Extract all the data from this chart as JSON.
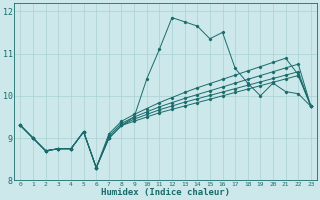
{
  "xlabel": "Humidex (Indice chaleur)",
  "xlim": [
    -0.5,
    23.5
  ],
  "ylim": [
    8,
    12.2
  ],
  "yticks": [
    8,
    9,
    10,
    11,
    12
  ],
  "xticks": [
    0,
    1,
    2,
    3,
    4,
    5,
    6,
    7,
    8,
    9,
    10,
    11,
    12,
    13,
    14,
    15,
    16,
    17,
    18,
    19,
    20,
    21,
    22,
    23
  ],
  "bg_color": "#cce8ea",
  "grid_color": "#aad0d4",
  "line_color": "#1a6b6b",
  "lines": [
    {
      "x": [
        0,
        1,
        2,
        3,
        4,
        5,
        6,
        7,
        8,
        9,
        10,
        11,
        12,
        13,
        14,
        15,
        16,
        17,
        18,
        19,
        20,
        21,
        22,
        23
      ],
      "y": [
        9.3,
        9.0,
        8.7,
        8.75,
        8.75,
        9.15,
        8.3,
        9.0,
        9.3,
        9.5,
        10.4,
        11.1,
        11.85,
        11.75,
        11.65,
        11.35,
        11.5,
        10.65,
        10.3,
        10.0,
        10.3,
        10.1,
        10.05,
        9.75
      ]
    },
    {
      "x": [
        0,
        1,
        2,
        3,
        4,
        5,
        6,
        7,
        8,
        9,
        10,
        11,
        12,
        13,
        14,
        15,
        16,
        17,
        18,
        19,
        20,
        21,
        22,
        23
      ],
      "y": [
        9.3,
        9.0,
        8.7,
        8.75,
        8.75,
        9.15,
        8.3,
        9.0,
        9.3,
        9.4,
        9.5,
        9.6,
        9.68,
        9.76,
        9.84,
        9.92,
        10.0,
        10.08,
        10.16,
        10.24,
        10.32,
        10.4,
        10.48,
        9.75
      ]
    },
    {
      "x": [
        0,
        1,
        2,
        3,
        4,
        5,
        6,
        7,
        8,
        9,
        10,
        11,
        12,
        13,
        14,
        15,
        16,
        17,
        18,
        19,
        20,
        21,
        22,
        23
      ],
      "y": [
        9.3,
        9.0,
        8.7,
        8.75,
        8.75,
        9.15,
        8.3,
        9.0,
        9.3,
        9.45,
        9.56,
        9.67,
        9.76,
        9.85,
        9.93,
        10.01,
        10.09,
        10.17,
        10.25,
        10.33,
        10.41,
        10.49,
        10.57,
        9.75
      ]
    },
    {
      "x": [
        0,
        1,
        2,
        3,
        4,
        5,
        6,
        7,
        8,
        9,
        10,
        11,
        12,
        13,
        14,
        15,
        16,
        17,
        18,
        19,
        20,
        21,
        22,
        23
      ],
      "y": [
        9.3,
        9.0,
        8.7,
        8.75,
        8.75,
        9.15,
        8.3,
        9.05,
        9.35,
        9.5,
        9.62,
        9.74,
        9.84,
        9.94,
        10.03,
        10.12,
        10.21,
        10.3,
        10.39,
        10.48,
        10.57,
        10.66,
        10.75,
        9.75
      ]
    },
    {
      "x": [
        0,
        1,
        2,
        3,
        4,
        5,
        6,
        7,
        8,
        9,
        10,
        11,
        12,
        13,
        14,
        15,
        16,
        17,
        18,
        19,
        20,
        21,
        22,
        23
      ],
      "y": [
        9.3,
        9.0,
        8.7,
        8.75,
        8.75,
        9.15,
        8.3,
        9.1,
        9.4,
        9.56,
        9.7,
        9.84,
        9.96,
        10.08,
        10.19,
        10.29,
        10.39,
        10.49,
        10.59,
        10.69,
        10.79,
        10.89,
        10.5,
        9.75
      ]
    }
  ]
}
